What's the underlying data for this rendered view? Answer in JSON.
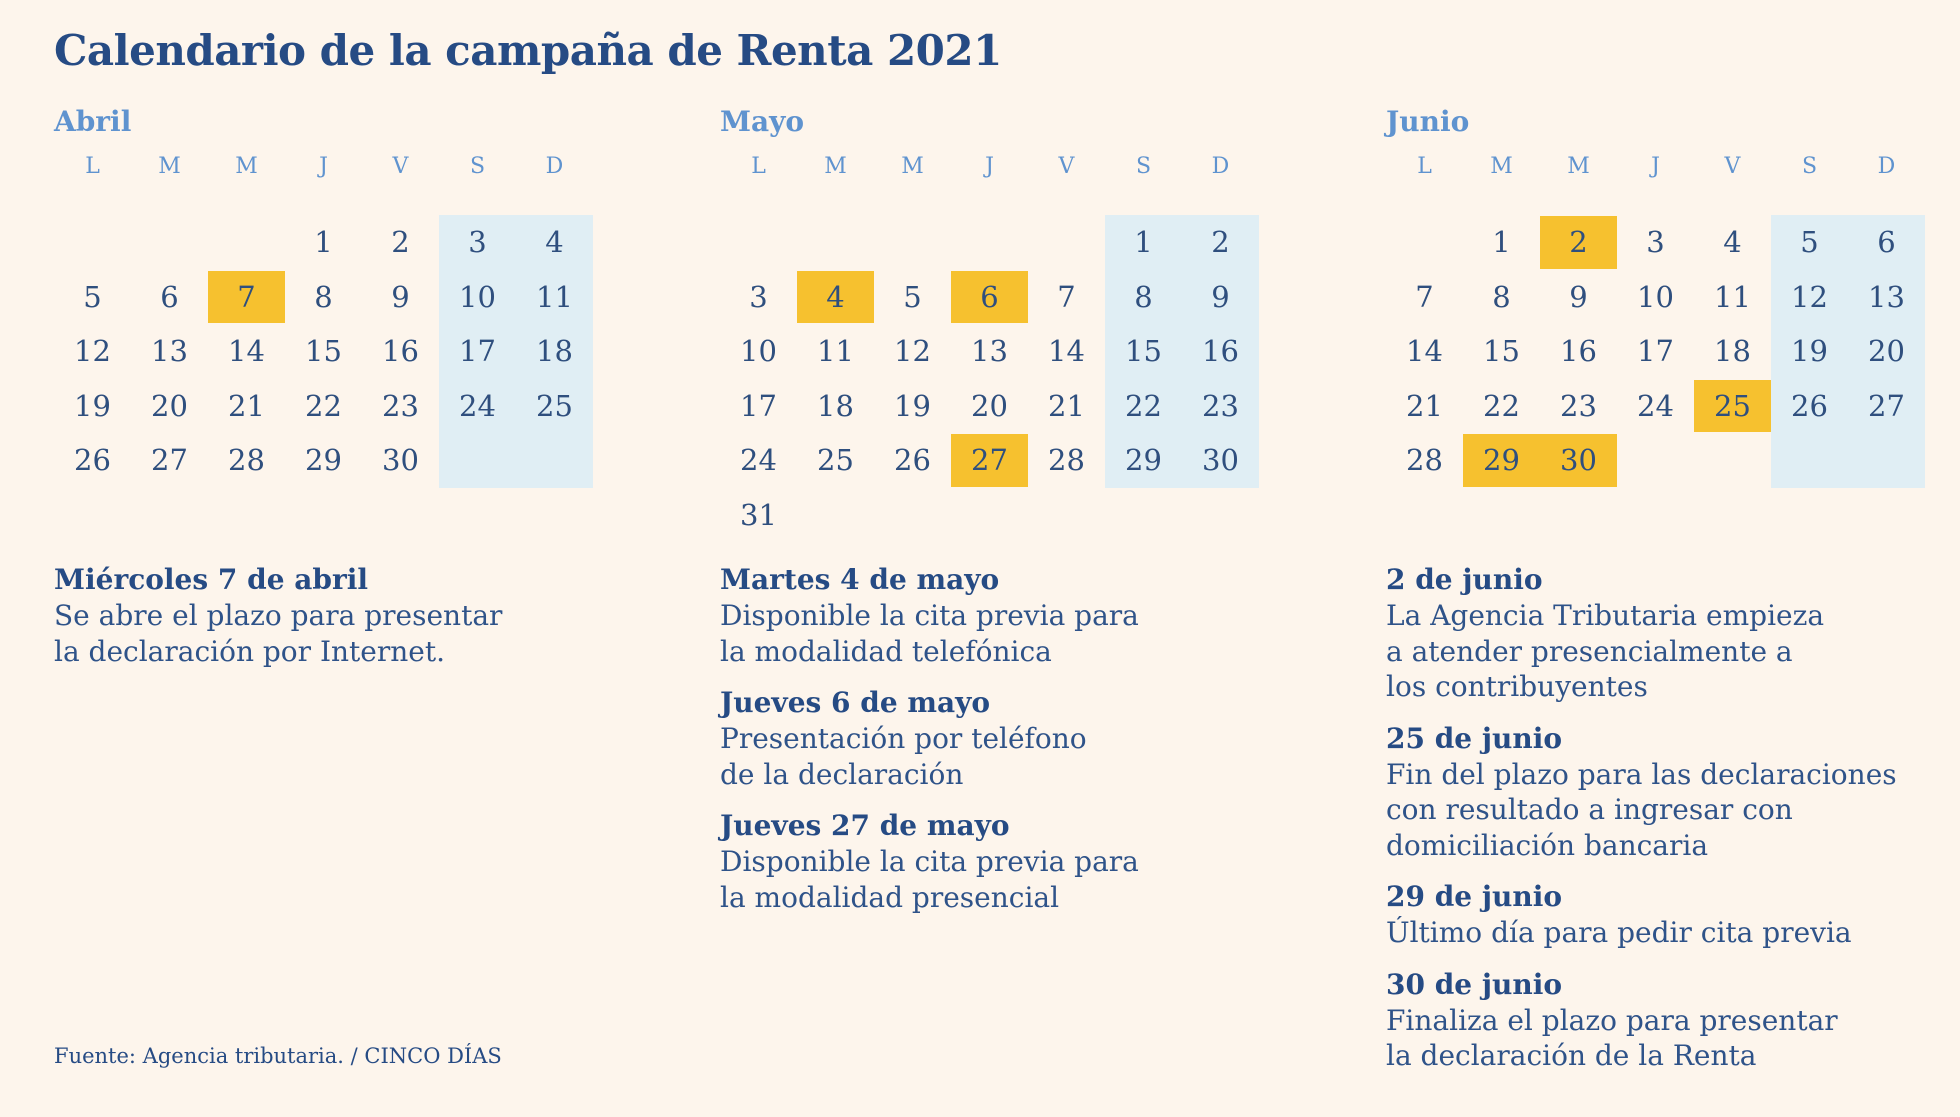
{
  "title": "Calendario de la campaña de Renta 2021",
  "weekday_labels": [
    "L",
    "M",
    "M",
    "J",
    "V",
    "S",
    "D"
  ],
  "colors": {
    "highlight": "#f6c12f",
    "weekend": "#e0eef4",
    "background": "#fdf5ec",
    "text": "#264b84",
    "month_label": "#5f93cf"
  },
  "months": [
    {
      "name": "Abril",
      "weeks": [
        [
          "",
          "",
          "",
          "1",
          "2",
          "3",
          "4"
        ],
        [
          "5",
          "6",
          "7",
          "8",
          "9",
          "10",
          "11"
        ],
        [
          "12",
          "13",
          "14",
          "15",
          "16",
          "17",
          "18"
        ],
        [
          "19",
          "20",
          "21",
          "22",
          "23",
          "24",
          "25"
        ],
        [
          "26",
          "27",
          "28",
          "29",
          "30",
          "",
          ""
        ]
      ],
      "highlighted": [
        "7"
      ]
    },
    {
      "name": "Mayo",
      "weeks": [
        [
          "",
          "",
          "",
          "",
          "",
          "1",
          "2"
        ],
        [
          "3",
          "4",
          "5",
          "6",
          "7",
          "8",
          "9"
        ],
        [
          "10",
          "11",
          "12",
          "13",
          "14",
          "15",
          "16"
        ],
        [
          "17",
          "18",
          "19",
          "20",
          "21",
          "22",
          "23"
        ],
        [
          "24",
          "25",
          "26",
          "27",
          "28",
          "29",
          "30"
        ],
        [
          "31",
          "",
          "",
          "",
          "",
          "",
          ""
        ]
      ],
      "highlighted": [
        "4",
        "6",
        "27"
      ]
    },
    {
      "name": "Junio",
      "weeks": [
        [
          "",
          "1",
          "2",
          "3",
          "4",
          "5",
          "6"
        ],
        [
          "7",
          "8",
          "9",
          "10",
          "11",
          "12",
          "13"
        ],
        [
          "14",
          "15",
          "16",
          "17",
          "18",
          "19",
          "20"
        ],
        [
          "21",
          "22",
          "23",
          "24",
          "25",
          "26",
          "27"
        ],
        [
          "28",
          "29",
          "30",
          "",
          "",
          "",
          ""
        ]
      ],
      "highlighted": [
        "2",
        "25",
        "29",
        "30"
      ]
    }
  ],
  "events": [
    [
      {
        "title": "Miércoles 7 de abril",
        "lines": [
          "Se abre el plazo para presentar",
          "la declaración por Internet."
        ]
      }
    ],
    [
      {
        "title": "Martes 4 de mayo",
        "lines": [
          "Disponible la cita previa para",
          "la modalidad telefónica"
        ]
      },
      {
        "title": "Jueves 6 de mayo",
        "lines": [
          "Presentación por teléfono",
          "de la declaración"
        ]
      },
      {
        "title": "Jueves 27 de mayo",
        "lines": [
          "Disponible la cita previa para",
          "la modalidad presencial"
        ]
      }
    ],
    [
      {
        "title": "2 de junio",
        "lines": [
          "La Agencia Tributaria empieza",
          "a atender presencialmente a",
          "los contribuyentes"
        ]
      },
      {
        "title": "25 de junio",
        "lines": [
          "Fin del plazo para las declaraciones",
          "con resultado a ingresar con",
          "domiciliación bancaria"
        ]
      },
      {
        "title": "29 de junio",
        "lines": [
          "Último día para pedir cita previa"
        ]
      },
      {
        "title": "30 de junio",
        "lines": [
          "Finaliza el plazo para presentar",
          "la declaración de la Renta"
        ]
      }
    ]
  ],
  "source": "Fuente: Agencia tributaria. / CINCO DÍAS"
}
